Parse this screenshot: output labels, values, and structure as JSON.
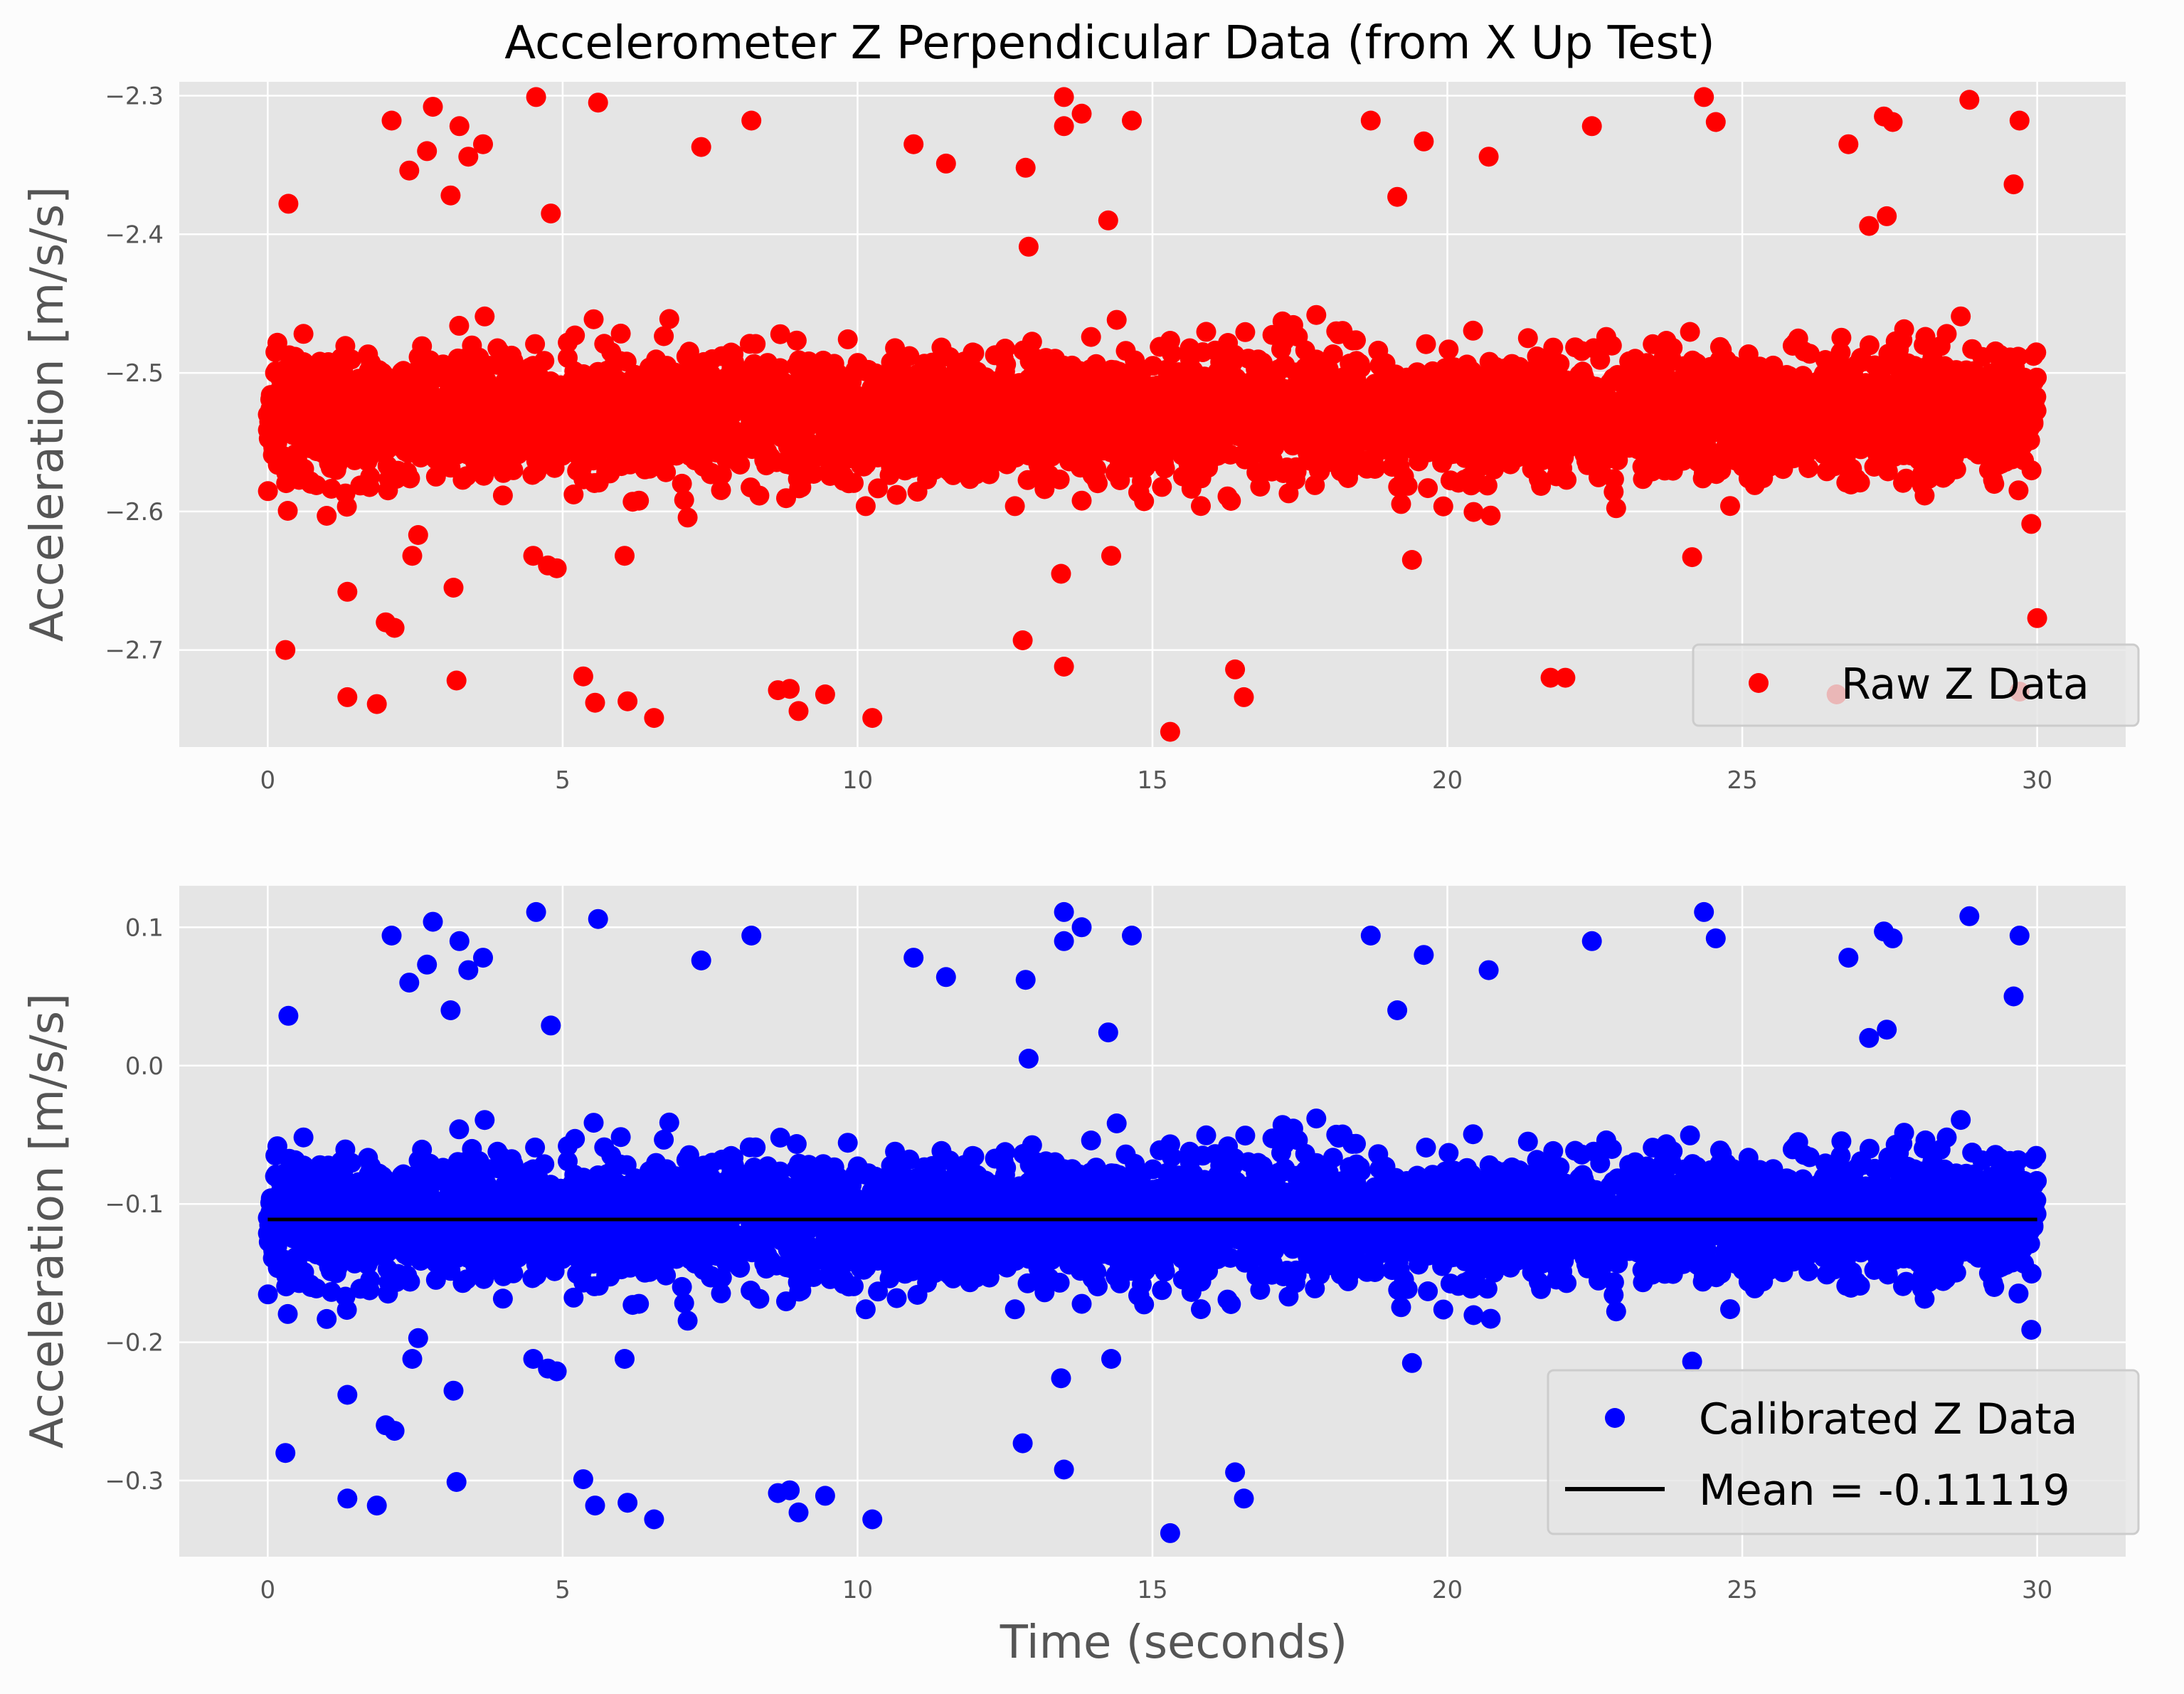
{
  "title": "Accelerometer Z Perpendicular Data (from X Up Test)",
  "colors": {
    "raw": "#ff0000",
    "calibrated": "#0000ff",
    "mean": "#000000",
    "axes_bg": "#e5e5e5",
    "grid": "#ffffff"
  },
  "chart_data": [
    {
      "type": "scatter",
      "title": "Accelerometer Z Perpendicular Data (from X Up Test)",
      "xlabel": "",
      "ylabel": "Acceleration [m/s/s]",
      "xlim": [
        -1.5,
        31.5
      ],
      "ylim": [
        -2.77,
        -2.29
      ],
      "xticks": [
        0,
        5,
        10,
        15,
        20,
        25,
        30
      ],
      "yticks": [
        -2.7,
        -2.6,
        -2.5,
        -2.4,
        -2.3
      ],
      "ytick_labels": [
        "−2.7",
        "−2.6",
        "−2.5",
        "−2.4",
        "−2.3"
      ],
      "grid": true,
      "legend_position": "lower-right",
      "series": [
        {
          "name": "Raw Z Data",
          "color": "#ff0000",
          "x_range": [
            0,
            30
          ],
          "y_center": -2.531,
          "y_spread": 0.035,
          "n_points": 4500,
          "outliers": [
            [
              0.3,
              -2.7
            ],
            [
              0.35,
              -2.378
            ],
            [
              1.35,
              -2.658
            ],
            [
              1.35,
              -2.734
            ],
            [
              1.85,
              -2.739
            ],
            [
              2.0,
              -2.68
            ],
            [
              2.1,
              -2.318
            ],
            [
              2.15,
              -2.684
            ],
            [
              2.4,
              -2.354
            ],
            [
              2.45,
              -2.632
            ],
            [
              2.55,
              -2.617
            ],
            [
              2.7,
              -2.34
            ],
            [
              2.8,
              -2.308
            ],
            [
              3.1,
              -2.372
            ],
            [
              3.15,
              -2.655
            ],
            [
              3.2,
              -2.722
            ],
            [
              3.25,
              -2.322
            ],
            [
              3.4,
              -2.344
            ],
            [
              3.65,
              -2.335
            ],
            [
              4.5,
              -2.632
            ],
            [
              4.55,
              -2.301
            ],
            [
              4.75,
              -2.639
            ],
            [
              4.8,
              -2.385
            ],
            [
              4.9,
              -2.641
            ],
            [
              5.35,
              -2.719
            ],
            [
              5.55,
              -2.738
            ],
            [
              5.6,
              -2.305
            ],
            [
              6.05,
              -2.632
            ],
            [
              6.1,
              -2.737
            ],
            [
              6.55,
              -2.749
            ],
            [
              7.35,
              -2.337
            ],
            [
              8.2,
              -2.318
            ],
            [
              8.65,
              -2.729
            ],
            [
              8.85,
              -2.728
            ],
            [
              9.0,
              -2.744
            ],
            [
              9.45,
              -2.732
            ],
            [
              10.25,
              -2.749
            ],
            [
              10.95,
              -2.335
            ],
            [
              11.5,
              -2.349
            ],
            [
              12.8,
              -2.693
            ],
            [
              12.85,
              -2.352
            ],
            [
              12.9,
              -2.409
            ],
            [
              13.45,
              -2.645
            ],
            [
              13.5,
              -2.712
            ],
            [
              13.5,
              -2.301
            ],
            [
              13.5,
              -2.322
            ],
            [
              13.8,
              -2.313
            ],
            [
              14.25,
              -2.39
            ],
            [
              14.3,
              -2.632
            ],
            [
              14.65,
              -2.318
            ],
            [
              15.3,
              -2.759
            ],
            [
              16.4,
              -2.714
            ],
            [
              16.55,
              -2.734
            ],
            [
              18.7,
              -2.318
            ],
            [
              19.15,
              -2.373
            ],
            [
              19.6,
              -2.333
            ],
            [
              19.4,
              -2.635
            ],
            [
              20.7,
              -2.344
            ],
            [
              21.75,
              -2.72
            ],
            [
              22.0,
              -2.72
            ],
            [
              22.45,
              -2.322
            ],
            [
              24.35,
              -2.301
            ],
            [
              24.55,
              -2.319
            ],
            [
              24.15,
              -2.633
            ],
            [
              26.6,
              -2.732
            ],
            [
              26.8,
              -2.335
            ],
            [
              27.15,
              -2.394
            ],
            [
              27.4,
              -2.315
            ],
            [
              27.45,
              -2.387
            ],
            [
              27.55,
              -2.319
            ],
            [
              28.85,
              -2.303
            ],
            [
              29.6,
              -2.364
            ],
            [
              29.7,
              -2.318
            ],
            [
              29.7,
              -2.73
            ],
            [
              30.0,
              -2.677
            ],
            [
              29.9,
              -2.609
            ]
          ]
        }
      ]
    },
    {
      "type": "scatter",
      "title": "",
      "xlabel": "Time (seconds)",
      "ylabel": "Acceleration [m/s/s]",
      "xlim": [
        -1.5,
        31.5
      ],
      "ylim": [
        -0.355,
        0.13
      ],
      "xticks": [
        0,
        5,
        10,
        15,
        20,
        25,
        30
      ],
      "yticks": [
        -0.3,
        -0.2,
        -0.1,
        0.0,
        0.1
      ],
      "ytick_labels": [
        "−0.3",
        "−0.2",
        "−0.1",
        "0.0",
        "0.1"
      ],
      "grid": true,
      "legend_position": "lower-right",
      "series": [
        {
          "name": "Calibrated Z Data",
          "color": "#0000ff",
          "x_range": [
            0,
            30
          ],
          "y_center": -0.111,
          "y_spread": 0.035,
          "n_points": 4500,
          "outliers": [
            [
              0.3,
              -0.28
            ],
            [
              0.35,
              0.036
            ],
            [
              1.35,
              -0.238
            ],
            [
              1.35,
              -0.313
            ],
            [
              1.85,
              -0.318
            ],
            [
              2.0,
              -0.26
            ],
            [
              2.1,
              0.094
            ],
            [
              2.15,
              -0.264
            ],
            [
              2.4,
              0.06
            ],
            [
              2.45,
              -0.212
            ],
            [
              2.55,
              -0.197
            ],
            [
              2.7,
              0.073
            ],
            [
              2.8,
              0.104
            ],
            [
              3.1,
              0.04
            ],
            [
              3.15,
              -0.235
            ],
            [
              3.2,
              -0.301
            ],
            [
              3.25,
              0.09
            ],
            [
              3.4,
              0.069
            ],
            [
              3.65,
              0.078
            ],
            [
              4.5,
              -0.212
            ],
            [
              4.55,
              0.111
            ],
            [
              4.75,
              -0.219
            ],
            [
              4.8,
              0.029
            ],
            [
              4.9,
              -0.221
            ],
            [
              5.35,
              -0.299
            ],
            [
              5.55,
              -0.318
            ],
            [
              5.6,
              0.106
            ],
            [
              6.05,
              -0.212
            ],
            [
              6.1,
              -0.316
            ],
            [
              6.55,
              -0.328
            ],
            [
              7.35,
              0.076
            ],
            [
              8.2,
              0.094
            ],
            [
              8.65,
              -0.309
            ],
            [
              8.85,
              -0.307
            ],
            [
              9.0,
              -0.323
            ],
            [
              9.45,
              -0.311
            ],
            [
              10.25,
              -0.328
            ],
            [
              10.95,
              0.078
            ],
            [
              11.5,
              0.064
            ],
            [
              12.8,
              -0.273
            ],
            [
              12.85,
              0.062
            ],
            [
              12.9,
              0.005
            ],
            [
              13.45,
              -0.226
            ],
            [
              13.5,
              -0.292
            ],
            [
              13.5,
              0.111
            ],
            [
              13.5,
              0.09
            ],
            [
              13.8,
              0.1
            ],
            [
              14.25,
              0.024
            ],
            [
              14.3,
              -0.212
            ],
            [
              14.65,
              0.094
            ],
            [
              15.3,
              -0.338
            ],
            [
              16.4,
              -0.294
            ],
            [
              16.55,
              -0.313
            ],
            [
              18.7,
              0.094
            ],
            [
              19.15,
              0.04
            ],
            [
              19.6,
              0.08
            ],
            [
              19.4,
              -0.215
            ],
            [
              20.7,
              0.069
            ],
            [
              24.35,
              0.111
            ],
            [
              24.55,
              0.092
            ],
            [
              24.15,
              -0.214
            ],
            [
              22.45,
              0.09
            ],
            [
              26.8,
              0.078
            ],
            [
              27.15,
              0.02
            ],
            [
              27.4,
              0.097
            ],
            [
              27.45,
              0.026
            ],
            [
              27.55,
              0.092
            ],
            [
              28.85,
              0.108
            ],
            [
              29.6,
              0.05
            ],
            [
              29.7,
              0.094
            ],
            [
              29.9,
              -0.191
            ]
          ]
        },
        {
          "name": "Mean = -0.11119",
          "color": "#000000",
          "style": "line",
          "x": [
            0,
            30
          ],
          "y": [
            -0.11119,
            -0.11119
          ]
        }
      ]
    }
  ]
}
